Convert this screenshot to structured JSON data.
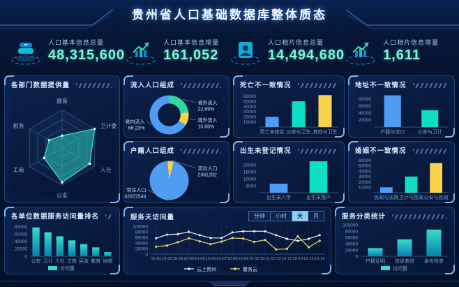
{
  "header": {
    "title": "贵州省人口基础数据库整体质态"
  },
  "kpis": [
    {
      "label": "人口基本信息总量",
      "value": "48,315,600",
      "icon": "database-icon"
    },
    {
      "label": "人口基本信息增量",
      "value": "161,052",
      "icon": "trend-up-icon"
    },
    {
      "label": "人口相片信息总量",
      "value": "14,494,680",
      "icon": "photo-id-icon"
    },
    {
      "label": "人口相片信息增量",
      "value": "1,611",
      "icon": "trend-up-icon"
    }
  ],
  "colors": {
    "blue": "#4f9df2",
    "teal": "#0fdec6",
    "yellow": "#f7d44c",
    "kpi_value": "#82f6d8",
    "axis_text": "#7da0c8",
    "line_white": "#e9f1fa",
    "line_yellow": "#e8d87a",
    "grad_top": "#35dccc",
    "grad_bottom": "#0b7fae"
  },
  "chart_data": [
    {
      "id": "dept-radar",
      "type": "radar",
      "title": "各部门数据提供量",
      "categories": [
        "教育",
        "卫计委",
        "人社",
        "公安",
        "工商",
        "税务"
      ],
      "values": [
        32,
        100,
        85,
        92,
        55,
        40
      ],
      "max": 100,
      "fill": "#2fd8c8"
    },
    {
      "id": "inflow-donut",
      "type": "donut",
      "title": "流入人口组成",
      "slices": [
        {
          "label": "省外流入",
          "pct": 22.89,
          "text": "22.89%",
          "color": "#2fd8a0",
          "pos": "right-top"
        },
        {
          "label": "境外流入",
          "pct": 10.88,
          "text": "10.88%",
          "color": "#f7d24a",
          "pos": "right"
        },
        {
          "label": "省内流入",
          "pct": 66.23,
          "text": "66.23%",
          "color": "#4f9df2",
          "pos": "left"
        }
      ]
    },
    {
      "id": "death-bars",
      "type": "bar",
      "title": "死亡不一致情况",
      "categories": [
        "死亡未核实",
        "公安与卫生",
        "其他与卫生"
      ],
      "values": [
        20000,
        50000,
        62000
      ],
      "colors": [
        "#4f9df2",
        "#0fdec6",
        "#f7d44c"
      ],
      "ymax": 65000,
      "yticks": [
        10000,
        20000,
        30000,
        40000,
        50000,
        60000
      ]
    },
    {
      "id": "address-bars",
      "type": "bar",
      "title": "地址不一致情况",
      "categories": [
        "户籍与流口",
        "公安与卫计"
      ],
      "values": [
        90000,
        48000
      ],
      "colors": [
        "#4f9df2",
        "#0fdec6"
      ],
      "ymax": 95000,
      "yticks": [
        20000,
        40000,
        60000,
        80000
      ]
    },
    {
      "id": "hukou-pie",
      "type": "pie",
      "title": "户籍人口组成",
      "slices": [
        {
          "label": "流出人口",
          "value": 2361282,
          "text": "2361282",
          "color": "#f7d24a",
          "pos": "right-top"
        },
        {
          "label": "常住人口",
          "value": 42972544,
          "text": "42972544",
          "color": "#4f9df2",
          "pos": "left-bottom"
        }
      ]
    },
    {
      "id": "birth-bars",
      "type": "bar",
      "title": "出生未登记情况",
      "categories": [
        "出生未入学",
        "出生未落户"
      ],
      "values": [
        6500,
        22500
      ],
      "colors": [
        "#4f9df2",
        "#0fdec6"
      ],
      "ymax": 24000,
      "yticks": [
        5000,
        10000,
        15000,
        20000
      ]
    },
    {
      "id": "marriage-bars",
      "type": "bar",
      "title": "婚姻不一致情况",
      "categories": [
        "民政与法院",
        "卫计与民政",
        "公安与民政"
      ],
      "values": [
        10000,
        30000,
        55000
      ],
      "colors": [
        "#4f9df2",
        "#0fdec6",
        "#f7d44c"
      ],
      "ymax": 62000,
      "yticks": [
        10000,
        20000,
        30000,
        40000,
        50000,
        60000
      ]
    },
    {
      "id": "unit-rank-bars",
      "type": "bar",
      "title": "各单位数据服务访问量排名",
      "categories": [
        "公安",
        "卫计",
        "人社",
        "工商",
        "民政",
        "教育",
        "地税"
      ],
      "values": [
        78000,
        65000,
        54000,
        43000,
        33000,
        24000,
        11000
      ],
      "gradient": [
        "#35dccc",
        "#0b7fae"
      ],
      "ymax": 85000,
      "yticks": [
        0,
        20000,
        40000,
        60000,
        80000
      ],
      "legend": "访问量"
    },
    {
      "id": "daily-line",
      "type": "line",
      "title": "服务天访问量",
      "x": [
        "10-01",
        "10-02",
        "10-03",
        "10-04",
        "10-05",
        "10-06",
        "10-07",
        "10-08",
        "10-09",
        "10-10",
        "10-11",
        "10-12",
        "10-13",
        "10-14",
        "10-15",
        "10-16"
      ],
      "ymax": 100000,
      "yticks": [
        0,
        20000,
        40000,
        60000,
        80000,
        100000
      ],
      "series": [
        {
          "name": "云上贵州",
          "color": "#e9f1fa",
          "values": [
            57000,
            70000,
            72000,
            80000,
            68000,
            58000,
            58000,
            78000,
            82000,
            82000,
            82000,
            68000,
            55000,
            48000,
            55000,
            68000
          ]
        },
        {
          "name": "警务云",
          "color": "#e8d87a",
          "values": [
            27000,
            31000,
            43000,
            57000,
            46000,
            36000,
            45000,
            58000,
            56000,
            44000,
            51000,
            17000,
            19000,
            64000,
            25000,
            48000
          ]
        }
      ],
      "tabs": [
        "分钟",
        "小时",
        "天",
        "月"
      ],
      "active_tab": "天"
    },
    {
      "id": "service-type-bars",
      "type": "bar",
      "title": "服务分类统计",
      "categories": [
        "户籍证明",
        "信息查询",
        "身份核查"
      ],
      "values": [
        26000,
        54000,
        85000
      ],
      "gradient": [
        "#35dccc",
        "#0b7fae"
      ],
      "ymax": 100000,
      "yticks": [
        0,
        20000,
        40000,
        60000,
        80000,
        100000
      ],
      "legend": "访问量"
    }
  ]
}
